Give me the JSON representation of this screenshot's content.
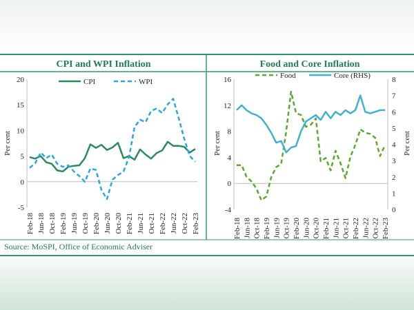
{
  "source": "Source: MoSPI, Office of Economic Adviser",
  "chart_data": [
    {
      "type": "line",
      "title": "CPI and WPI Inflation",
      "ylabel": "Per cent",
      "ylim": [
        -5,
        20
      ],
      "yticks": [
        -5,
        0,
        5,
        10,
        15,
        20
      ],
      "x": [
        "Feb-18",
        "Apr-18",
        "Jun-18",
        "Aug-18",
        "Oct-18",
        "Dec-18",
        "Feb-19",
        "Apr-19",
        "Jun-19",
        "Aug-19",
        "Oct-19",
        "Dec-19",
        "Feb-20",
        "Apr-20",
        "Jun-20",
        "Aug-20",
        "Oct-20",
        "Dec-20",
        "Feb-21",
        "Apr-21",
        "Jun-21",
        "Aug-21",
        "Oct-21",
        "Dec-21",
        "Feb-22",
        "Apr-22",
        "Jun-22",
        "Aug-22",
        "Oct-22",
        "Dec-22",
        "Feb-23"
      ],
      "xticks": [
        "Feb-18",
        "Jun-18",
        "Oct-18",
        "Feb-19",
        "Jun-19",
        "Oct-19",
        "Feb-20",
        "Jun-20",
        "Oct-20",
        "Feb-21",
        "Jun-21",
        "Oct-21",
        "Feb-22",
        "Jun-22",
        "Oct-22",
        "Feb-23"
      ],
      "legend": "top",
      "series": [
        {
          "name": "CPI",
          "color": "#2a8a5c",
          "style": "solid",
          "values": [
            4.8,
            4.5,
            5.0,
            3.8,
            3.5,
            2.2,
            2.0,
            2.9,
            3.1,
            3.2,
            4.6,
            7.3,
            6.6,
            7.2,
            6.2,
            6.7,
            7.6,
            4.6,
            5.0,
            4.3,
            6.3,
            5.3,
            4.5,
            5.6,
            6.1,
            7.8,
            7.0,
            7.0,
            6.8,
            5.7,
            6.4
          ]
        },
        {
          "name": "WPI",
          "color": "#29a8e0",
          "style": "dashed",
          "values": [
            2.7,
            3.6,
            5.7,
            4.6,
            5.3,
            3.5,
            2.9,
            3.2,
            2.0,
            1.1,
            0.0,
            2.6,
            2.3,
            -1.6,
            -3.4,
            0.4,
            1.3,
            2.0,
            4.8,
            10.7,
            12.1,
            11.6,
            13.8,
            14.3,
            13.4,
            15.1,
            16.2,
            12.4,
            8.4,
            5.0,
            3.9
          ]
        }
      ]
    },
    {
      "type": "line",
      "title": "Food and Core Inflation",
      "ylabel": "Per cent",
      "ylim": [
        -4,
        16
      ],
      "yticks": [
        -4,
        0,
        4,
        8,
        12,
        16
      ],
      "y2label": "Per cent",
      "y2lim": [
        0,
        8
      ],
      "y2ticks": [
        0,
        1,
        2,
        3,
        4,
        5,
        6,
        7,
        8
      ],
      "x": [
        "Feb-18",
        "Apr-18",
        "Jun-18",
        "Aug-18",
        "Oct-18",
        "Dec-18",
        "Feb-19",
        "Apr-19",
        "Jun-19",
        "Aug-19",
        "Oct-19",
        "Dec-19",
        "Feb-20",
        "Apr-20",
        "Jun-20",
        "Aug-20",
        "Oct-20",
        "Dec-20",
        "Feb-21",
        "Apr-21",
        "Jun-21",
        "Aug-21",
        "Oct-21",
        "Dec-21",
        "Feb-22",
        "Apr-22",
        "Jun-22",
        "Aug-22",
        "Oct-22",
        "Dec-22",
        "Feb-23"
      ],
      "xticks": [
        "Feb-18",
        "Jun-18",
        "Oct-18",
        "Feb-19",
        "Jun-19",
        "Oct-19",
        "Feb-20",
        "Jun-20",
        "Oct-20",
        "Feb-21",
        "Jun-21",
        "Oct-21",
        "Feb-22",
        "Jun-22",
        "Oct-22",
        "Feb-23"
      ],
      "legend": "top",
      "series": [
        {
          "name": "Food",
          "axis": "left",
          "color": "#5aa832",
          "style": "dashed",
          "values": [
            2.8,
            2.8,
            1.0,
            0.3,
            -0.8,
            -2.6,
            -2.0,
            1.0,
            2.5,
            3.0,
            7.9,
            14.1,
            10.8,
            10.5,
            8.7,
            9.0,
            10.0,
            3.4,
            3.9,
            2.0,
            5.0,
            3.1,
            0.8,
            4.1,
            5.9,
            8.3,
            7.8,
            7.6,
            7.0,
            4.2,
            5.9
          ]
        },
        {
          "name": "Core (RHS)",
          "axis": "right",
          "color": "#3fb0d4",
          "style": "solid",
          "values": [
            6.1,
            6.4,
            6.1,
            5.9,
            5.8,
            5.6,
            5.2,
            4.7,
            4.1,
            4.2,
            3.5,
            3.8,
            3.9,
            4.8,
            5.4,
            5.6,
            5.8,
            5.5,
            6.0,
            5.6,
            6.0,
            5.8,
            6.1,
            5.9,
            6.1,
            7.0,
            6.0,
            5.9,
            6.0,
            6.1,
            6.1
          ]
        }
      ]
    }
  ]
}
